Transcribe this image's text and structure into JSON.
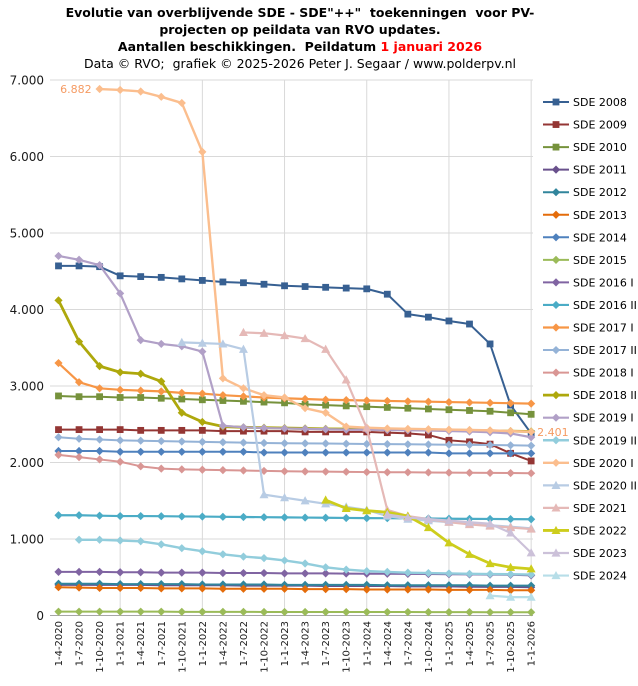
{
  "title": {
    "line1": "Evolutie van overblijvende SDE - SDE\"++\"  toekenningen  voor PV-",
    "line2": "projecten op peildata van RVO updates.",
    "line3_prefix": "Aantallen beschikkingen.  Peildatum ",
    "line3_highlight": "1 januari 2026",
    "highlight_color": "#ff0000",
    "subtitle": "Data © RVO;  grafiek © 2025-2026 Peter J. Segaar / www.polderpv.nl"
  },
  "annotations": [
    {
      "text": "6.882",
      "value": 6882,
      "x_index": 2,
      "side": "left",
      "color": "#F59B63"
    },
    {
      "text": "2.401",
      "value": 2401,
      "x_index": 23,
      "side": "right",
      "color": "#F59B63"
    }
  ],
  "chart_data": {
    "type": "line",
    "title": "Evolutie van overblijvende SDE - SDE\"++\" toekenningen voor PV-projecten op peildata van RVO updates. Aantallen beschikkingen. Peildatum 1 januari 2026",
    "xlabel": "peildatum (RVO update)",
    "ylabel": "aantal beschikkingen",
    "ylim": [
      0,
      7000
    ],
    "grid": "horizontal; vertical lines at 1 january of each year",
    "legend_position": "right",
    "y_ticks": [
      0,
      1000,
      2000,
      3000,
      4000,
      5000,
      6000,
      7000
    ],
    "y_tick_labels": [
      "0",
      "1.000",
      "2.000",
      "3.000",
      "4.000",
      "5.000",
      "6.000",
      "7.000"
    ],
    "x_labels": [
      "1-4-2020",
      "1-7-2020",
      "1-10-2020",
      "1-1-2021",
      "1-4-2021",
      "1-7-2021",
      "1-10-2021",
      "1-1-2022",
      "1-4-2022",
      "1-7-2022",
      "1-10-2022",
      "1-1-2023",
      "1-4-2023",
      "1-7-2023",
      "1-10-2023",
      "1-1-2024",
      "1-4-2024",
      "1-7-2024",
      "1-10-2024",
      "1-1-2025",
      "1-4-2025",
      "1-7-2025",
      "1-10-2025",
      "1-1-2026"
    ],
    "series": [
      {
        "name": "SDE 2008",
        "color": "#376092",
        "marker": "square",
        "line_width": 2,
        "start_index": 0,
        "values": [
          4570,
          4570,
          4560,
          4440,
          4430,
          4420,
          4400,
          4380,
          4360,
          4350,
          4330,
          4310,
          4300,
          4290,
          4280,
          4270,
          4200,
          3940,
          3900,
          3850,
          3810,
          3550,
          2750,
          2380
        ]
      },
      {
        "name": "SDE 2009",
        "color": "#943634",
        "marker": "square",
        "line_width": 2,
        "start_index": 0,
        "values": [
          2430,
          2430,
          2430,
          2430,
          2420,
          2420,
          2420,
          2420,
          2410,
          2410,
          2410,
          2410,
          2400,
          2400,
          2400,
          2400,
          2390,
          2380,
          2360,
          2290,
          2270,
          2240,
          2120,
          2020
        ]
      },
      {
        "name": "SDE 2010",
        "color": "#76923C",
        "marker": "square",
        "line_width": 2,
        "start_index": 0,
        "values": [
          2870,
          2860,
          2860,
          2850,
          2850,
          2840,
          2830,
          2820,
          2810,
          2800,
          2790,
          2780,
          2760,
          2750,
          2740,
          2730,
          2720,
          2710,
          2700,
          2690,
          2680,
          2670,
          2650,
          2630
        ]
      },
      {
        "name": "SDE 2011",
        "color": "#69508C",
        "marker": "diamond",
        "line_width": 2,
        "start_index": 0,
        "values": [
          400,
          400,
          400,
          400,
          400,
          395,
          395,
          395,
          395,
          390,
          390,
          390,
          390,
          385,
          385,
          385,
          385,
          380,
          380,
          380,
          375,
          375,
          375,
          370
        ]
      },
      {
        "name": "SDE 2012",
        "color": "#31859C",
        "marker": "diamond",
        "line_width": 2,
        "start_index": 0,
        "values": [
          415,
          415,
          415,
          410,
          410,
          410,
          410,
          405,
          405,
          405,
          405,
          400,
          400,
          400,
          400,
          400,
          395,
          395,
          395,
          395,
          395,
          390,
          390,
          390
        ]
      },
      {
        "name": "SDE 2013",
        "color": "#E46C0A",
        "marker": "diamond",
        "line_width": 2,
        "start_index": 0,
        "values": [
          370,
          365,
          360,
          360,
          360,
          355,
          355,
          355,
          350,
          350,
          350,
          350,
          345,
          345,
          345,
          340,
          340,
          340,
          340,
          335,
          335,
          335,
          330,
          330
        ]
      },
      {
        "name": "SDE 2014",
        "color": "#4F81BD",
        "marker": "diamond",
        "line_width": 2,
        "start_index": 0,
        "values": [
          2150,
          2150,
          2150,
          2140,
          2140,
          2140,
          2140,
          2140,
          2140,
          2140,
          2130,
          2130,
          2130,
          2130,
          2130,
          2130,
          2130,
          2130,
          2130,
          2120,
          2120,
          2120,
          2120,
          2120
        ]
      },
      {
        "name": "SDE 2015",
        "color": "#9BBB59",
        "marker": "diamond",
        "line_width": 2,
        "start_index": 0,
        "values": [
          50,
          50,
          50,
          50,
          50,
          50,
          48,
          48,
          48,
          48,
          46,
          46,
          46,
          46,
          45,
          45,
          45,
          45,
          44,
          44,
          44,
          43,
          43,
          42
        ]
      },
      {
        "name": "SDE 2016 I",
        "color": "#8064A2",
        "marker": "diamond",
        "line_width": 2,
        "start_index": 0,
        "values": [
          570,
          570,
          570,
          565,
          565,
          560,
          560,
          560,
          555,
          555,
          555,
          550,
          550,
          550,
          548,
          546,
          545,
          544,
          542,
          540,
          538,
          535,
          532,
          525
        ]
      },
      {
        "name": "SDE 2016 II",
        "color": "#4BACC6",
        "marker": "diamond",
        "line_width": 2.2,
        "start_index": 0,
        "values": [
          1310,
          1310,
          1305,
          1300,
          1300,
          1298,
          1295,
          1293,
          1290,
          1288,
          1285,
          1283,
          1280,
          1278,
          1275,
          1273,
          1272,
          1270,
          1268,
          1265,
          1263,
          1262,
          1260,
          1258
        ]
      },
      {
        "name": "SDE 2017 I",
        "color": "#F79646",
        "marker": "diamond",
        "line_width": 2.2,
        "start_index": 0,
        "values": [
          3300,
          3050,
          2970,
          2950,
          2940,
          2930,
          2910,
          2900,
          2880,
          2865,
          2850,
          2840,
          2830,
          2820,
          2815,
          2810,
          2805,
          2800,
          2795,
          2790,
          2785,
          2780,
          2775,
          2770
        ]
      },
      {
        "name": "SDE 2017 II",
        "color": "#95B3D7",
        "marker": "diamond",
        "line_width": 2,
        "start_index": 0,
        "values": [
          2330,
          2310,
          2300,
          2290,
          2285,
          2280,
          2275,
          2270,
          2265,
          2260,
          2255,
          2252,
          2250,
          2248,
          2245,
          2242,
          2240,
          2238,
          2235,
          2232,
          2230,
          2228,
          2225,
          2220
        ]
      },
      {
        "name": "SDE 2018 I",
        "color": "#D99694",
        "marker": "diamond",
        "line_width": 2,
        "start_index": 0,
        "values": [
          2100,
          2070,
          2040,
          2010,
          1950,
          1920,
          1910,
          1905,
          1900,
          1895,
          1890,
          1885,
          1882,
          1880,
          1878,
          1875,
          1873,
          1872,
          1870,
          1868,
          1866,
          1864,
          1862,
          1860
        ]
      },
      {
        "name": "SDE 2018 II",
        "color": "#AEA80C",
        "marker": "diamond",
        "line_width": 2.8,
        "start_index": 0,
        "values": [
          4120,
          3580,
          3260,
          3180,
          3160,
          3060,
          2650,
          2530,
          2470,
          2460,
          2455,
          2450,
          2445,
          2440,
          2438,
          2435,
          2432,
          2430,
          2428,
          2425,
          2420,
          2415,
          2410,
          2405
        ]
      },
      {
        "name": "SDE 2019 I",
        "color": "#B1A0C7",
        "marker": "diamond",
        "line_width": 2.2,
        "start_index": 0,
        "values": [
          4700,
          4650,
          4580,
          4210,
          3600,
          3550,
          3520,
          3450,
          2480,
          2460,
          2450,
          2445,
          2440,
          2435,
          2430,
          2428,
          2425,
          2422,
          2418,
          2412,
          2405,
          2395,
          2380,
          2330
        ]
      },
      {
        "name": "SDE 2019 II",
        "color": "#92CDDC",
        "marker": "diamond",
        "line_width": 2.4,
        "start_index": 1,
        "values": [
          990,
          990,
          980,
          970,
          930,
          880,
          840,
          800,
          770,
          750,
          720,
          680,
          630,
          600,
          580,
          570,
          560,
          555,
          550,
          545,
          542,
          540,
          535
        ]
      },
      {
        "name": "SDE 2020 I",
        "color": "#FBBE8E",
        "marker": "diamond",
        "line_width": 2.4,
        "start_index": 2,
        "values": [
          6882,
          6870,
          6850,
          6780,
          6700,
          6060,
          3100,
          2970,
          2880,
          2850,
          2710,
          2650,
          2470,
          2455,
          2445,
          2440,
          2435,
          2430,
          2425,
          2420,
          2410,
          2401
        ]
      },
      {
        "name": "SDE 2020 II",
        "color": "#B8CCE4",
        "marker": "triangle",
        "line_width": 2.2,
        "start_index": 6,
        "values": [
          3570,
          3560,
          3550,
          3480,
          1580,
          1540,
          1500,
          1460,
          1420,
          1380,
          1300,
          1260,
          1240,
          1220,
          1200,
          1180,
          1160,
          1140
        ]
      },
      {
        "name": "SDE 2021",
        "color": "#E5B9B7",
        "marker": "triangle",
        "line_width": 2.2,
        "start_index": 9,
        "values": [
          3700,
          3690,
          3660,
          3620,
          3480,
          3080,
          2450,
          1380,
          1300,
          1260,
          1220,
          1190,
          1170,
          1150,
          1130
        ]
      },
      {
        "name": "SDE 2022",
        "color": "#CDCD1C",
        "marker": "triangle",
        "line_width": 2.8,
        "start_index": 13,
        "values": [
          1510,
          1400,
          1370,
          1350,
          1300,
          1150,
          950,
          800,
          680,
          630,
          610
        ]
      },
      {
        "name": "SDE 2023",
        "color": "#CCC1D9",
        "marker": "triangle",
        "line_width": 2.2,
        "start_index": 16,
        "values": [
          1320,
          1280,
          1260,
          1240,
          1220,
          1200,
          1080,
          820
        ]
      },
      {
        "name": "SDE 2024",
        "color": "#B7DEE8",
        "marker": "triangle",
        "line_width": 2.2,
        "start_index": 21,
        "values": [
          260,
          240,
          240
        ]
      }
    ]
  }
}
